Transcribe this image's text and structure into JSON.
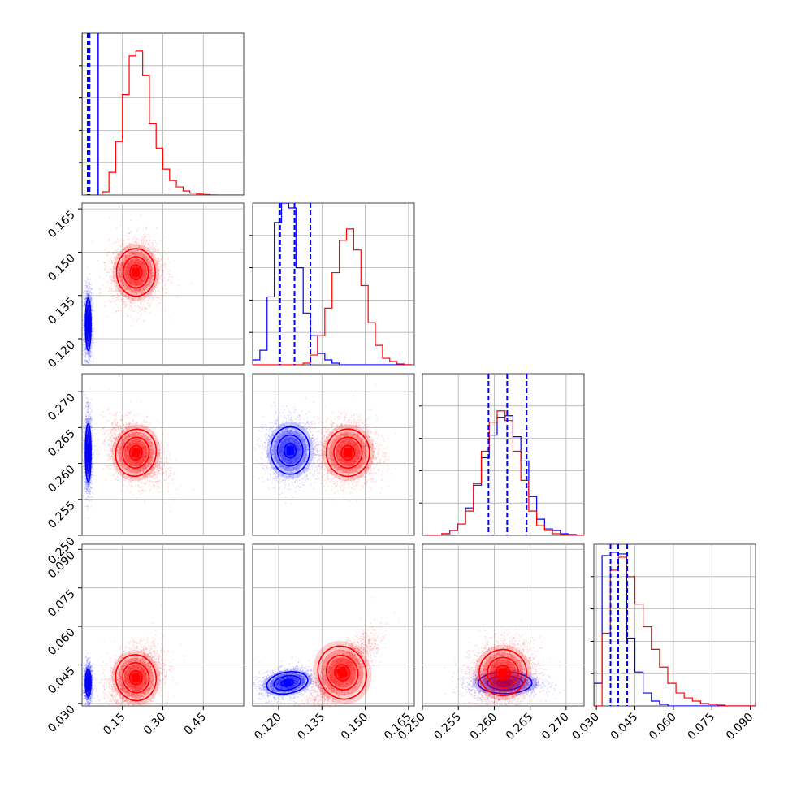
{
  "chart_data": {
    "type": "corner",
    "grid": true,
    "series": [
      {
        "color": "#0000ff"
      },
      {
        "color": "#ff0000"
      }
    ],
    "parameters": [
      {
        "range": [
          0.0,
          0.6
        ],
        "ticks": [
          0.15,
          0.3,
          0.45
        ],
        "tick_labels": [
          "0.15",
          "0.30",
          "0.45"
        ],
        "quantiles_blue": [
          0.021,
          0.025,
          0.028
        ],
        "solid_line_blue": 0.06,
        "hist_blue_spike": [
          0.0,
          0.06
        ],
        "hist_red": {
          "start": 0.0,
          "step": 0.025,
          "values": [
            0,
            0,
            0,
            0.02,
            0.14,
            0.33,
            0.62,
            0.86,
            0.89,
            0.74,
            0.44,
            0.29,
            0.16,
            0.09,
            0.05,
            0.025,
            0.012,
            0.006,
            0.003,
            0.001,
            0,
            0,
            0,
            0
          ]
        }
      },
      {
        "range": [
          0.111,
          0.167
        ],
        "ticks": [
          0.12,
          0.135,
          0.15,
          0.165
        ],
        "tick_labels": [
          "0.120",
          "0.135",
          "0.150",
          "0.165"
        ],
        "quantiles_blue": [
          0.1205,
          0.1255,
          0.131
        ],
        "hist_blue": {
          "start": 0.111,
          "step": 0.0025,
          "values": [
            0.03,
            0.09,
            0.42,
            0.88,
            1.0,
            0.97,
            0.6,
            0.32,
            0.18,
            0.07,
            0.03,
            0.01,
            0,
            0,
            0,
            0,
            0,
            0,
            0,
            0,
            0,
            0
          ]
        },
        "hist_red": {
          "start": 0.111,
          "step": 0.0025,
          "values": [
            0,
            0,
            0,
            0,
            0,
            0,
            0,
            0.01,
            0.06,
            0.18,
            0.35,
            0.57,
            0.77,
            0.84,
            0.71,
            0.49,
            0.26,
            0.12,
            0.04,
            0.02,
            0.005,
            0
          ]
        }
      },
      {
        "range": [
          0.25,
          0.2725
        ],
        "ticks": [
          0.25,
          0.255,
          0.26,
          0.265,
          0.27
        ],
        "tick_labels": [
          "0.250",
          "0.255",
          "0.260",
          "0.265",
          "0.270"
        ],
        "quantiles_blue": [
          0.2592,
          0.2618,
          0.2645
        ],
        "hist_blue": {
          "start": 0.2505,
          "step": 0.0011,
          "values": [
            0,
            0,
            0.01,
            0.03,
            0.07,
            0.17,
            0.31,
            0.48,
            0.62,
            0.73,
            0.74,
            0.61,
            0.46,
            0.24,
            0.1,
            0.04,
            0.03,
            0.01,
            0.005,
            0
          ]
        },
        "hist_red": {
          "start": 0.2505,
          "step": 0.0011,
          "values": [
            0,
            0,
            0.01,
            0.03,
            0.07,
            0.15,
            0.32,
            0.52,
            0.7,
            0.77,
            0.71,
            0.52,
            0.34,
            0.15,
            0.06,
            0.03,
            0.01,
            0.005,
            0,
            0
          ]
        }
      },
      {
        "range": [
          0.029,
          0.092
        ],
        "ticks": [
          0.03,
          0.045,
          0.06,
          0.075,
          0.09
        ],
        "tick_labels": [
          "0.030",
          "0.045",
          "0.060",
          "0.075",
          "0.090"
        ],
        "quantiles_blue": [
          0.0355,
          0.0385,
          0.042
        ],
        "hist_blue": {
          "start": 0.029,
          "step": 0.0032,
          "values": [
            0.14,
            0.93,
            0.95,
            0.94,
            0.42,
            0.21,
            0.08,
            0.03,
            0.01,
            0,
            0,
            0,
            0,
            0,
            0,
            0,
            0,
            0,
            0,
            0
          ]
        },
        "hist_red": {
          "start": 0.029,
          "step": 0.0032,
          "values": [
            0,
            0.45,
            0.84,
            0.92,
            0.8,
            0.63,
            0.49,
            0.35,
            0.24,
            0.14,
            0.08,
            0.05,
            0.03,
            0.015,
            0.01,
            0.005,
            0,
            0,
            0,
            0
          ]
        }
      }
    ],
    "pairs": [
      {
        "x_param": 0,
        "y_param": 1,
        "blue": {
          "mean": [
            0.023,
            0.125
          ],
          "sd": [
            0.007,
            0.006
          ],
          "rho": 0.0
        },
        "red": {
          "mean": [
            0.2,
            0.143
          ],
          "sd": [
            0.048,
            0.0055
          ],
          "rho": 0.05
        }
      },
      {
        "x_param": 0,
        "y_param": 2,
        "blue": {
          "mean": [
            0.023,
            0.2615
          ],
          "sd": [
            0.007,
            0.0027
          ],
          "rho": 0.0
        },
        "red": {
          "mean": [
            0.2,
            0.2615
          ],
          "sd": [
            0.05,
            0.0022
          ],
          "rho": -0.35
        }
      },
      {
        "x_param": 1,
        "y_param": 2,
        "blue": {
          "mean": [
            0.124,
            0.2618
          ],
          "sd": [
            0.0045,
            0.0022
          ],
          "rho": 0.0
        },
        "red": {
          "mean": [
            0.144,
            0.2615
          ],
          "sd": [
            0.005,
            0.0022
          ],
          "rho": 0.0
        }
      },
      {
        "x_param": 0,
        "y_param": 3,
        "blue": {
          "mean": [
            0.023,
            0.038
          ],
          "sd": [
            0.007,
            0.0035
          ],
          "rho": 0.0
        },
        "red": {
          "mean": [
            0.2,
            0.04
          ],
          "sd": [
            0.05,
            0.006
          ],
          "rho": 0.3
        }
      },
      {
        "x_param": 1,
        "y_param": 3,
        "blue": {
          "mean": [
            0.123,
            0.038
          ],
          "sd": [
            0.0048,
            0.0028
          ],
          "rho": 0.3
        },
        "red": {
          "mean": [
            0.142,
            0.042
          ],
          "sd": [
            0.0055,
            0.007
          ],
          "rho": 0.78
        }
      },
      {
        "x_param": 2,
        "y_param": 3,
        "blue": {
          "mean": [
            0.2615,
            0.038
          ],
          "sd": [
            0.0025,
            0.0028
          ],
          "rho": 0.0
        },
        "red": {
          "mean": [
            0.2612,
            0.042
          ],
          "sd": [
            0.0022,
            0.006
          ],
          "rho": 0.1
        }
      }
    ]
  }
}
